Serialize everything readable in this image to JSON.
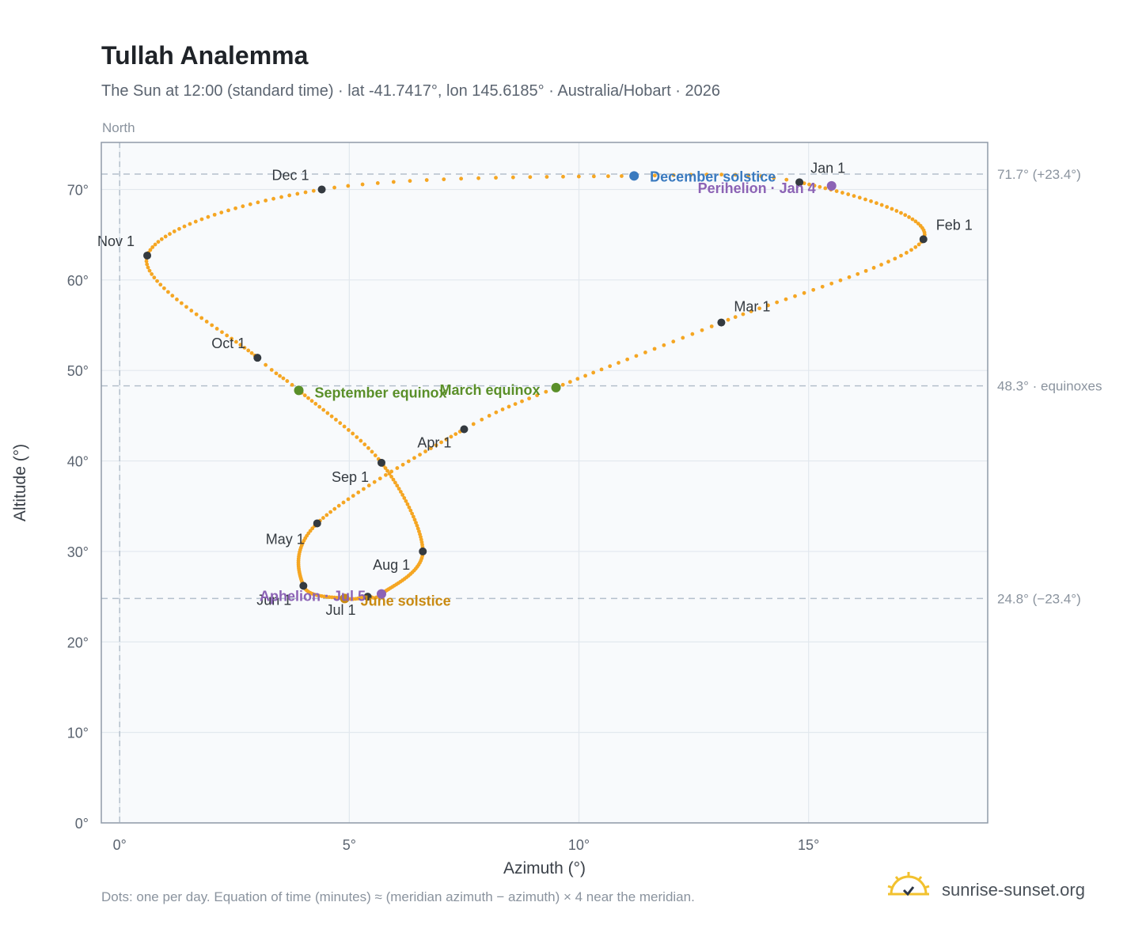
{
  "header": {
    "title": "Tullah Analemma",
    "subtitle": "The Sun at 12:00 (standard time) · lat -41.7417°, lon 145.6185° · Australia/Hobart · 2026"
  },
  "footer": {
    "note": "Dots: one per day. Equation of time (minutes) ≈ (meridian azimuth − azimuth) × 4 near the meridian.",
    "brand": "sunrise-sunset.org",
    "brand_icon": "sun-logo-icon"
  },
  "colors": {
    "curve": "#f5a623",
    "month_marker": "#343a40",
    "equinox": "#5a8f29",
    "december_solstice": "#3a7abf",
    "june_solstice": "#c98a12",
    "perihelion_aphelion": "#8c63b5",
    "plot_bg": "#f8fafc",
    "grid": "#e2e8ee",
    "ref_line": "#b4c0cc"
  },
  "chart_data": {
    "type": "scatter",
    "xlabel": "Azimuth (°)",
    "ylabel": "Altitude (°)",
    "xlim": [
      -0.4,
      18.9
    ],
    "ylim": [
      0,
      75.2
    ],
    "xticks": [
      0,
      5,
      10,
      15
    ],
    "yticks": [
      0,
      10,
      20,
      30,
      40,
      50,
      60,
      70
    ],
    "x_tick_labels": [
      "0°",
      "5°",
      "10°",
      "15°"
    ],
    "y_tick_labels": [
      "0°",
      "10°",
      "20°",
      "30°",
      "40°",
      "50°",
      "60°",
      "70°"
    ],
    "grid": true,
    "direction_label": "North",
    "meridian_azimuth": 0,
    "reference_lines": [
      {
        "altitude": 71.7,
        "label": "71.7° (+23.4°)"
      },
      {
        "altitude": 48.3,
        "label": "48.3° · equinoxes"
      },
      {
        "altitude": 24.8,
        "label": "24.8° (−23.4°)"
      }
    ],
    "analemma_anchors": [
      {
        "day": 1,
        "azimuth": 14.8,
        "altitude": 70.8
      },
      {
        "day": 32,
        "azimuth": 17.5,
        "altitude": 64.5
      },
      {
        "day": 60,
        "azimuth": 13.1,
        "altitude": 55.3
      },
      {
        "day": 79,
        "azimuth": 9.5,
        "altitude": 48.1
      },
      {
        "day": 91,
        "azimuth": 7.5,
        "altitude": 43.5
      },
      {
        "day": 121,
        "azimuth": 4.3,
        "altitude": 33.1
      },
      {
        "day": 152,
        "azimuth": 4.0,
        "altitude": 26.2
      },
      {
        "day": 172,
        "azimuth": 4.9,
        "altitude": 24.8
      },
      {
        "day": 182,
        "azimuth": 5.4,
        "altitude": 25.0
      },
      {
        "day": 186,
        "azimuth": 5.7,
        "altitude": 25.3
      },
      {
        "day": 213,
        "azimuth": 6.6,
        "altitude": 30.0
      },
      {
        "day": 244,
        "azimuth": 5.7,
        "altitude": 39.8
      },
      {
        "day": 266,
        "azimuth": 3.9,
        "altitude": 47.8
      },
      {
        "day": 274,
        "azimuth": 3.0,
        "altitude": 51.4
      },
      {
        "day": 305,
        "azimuth": 0.6,
        "altitude": 62.7
      },
      {
        "day": 335,
        "azimuth": 4.4,
        "altitude": 70.0
      },
      {
        "day": 355,
        "azimuth": 11.2,
        "altitude": 71.5
      },
      {
        "day": 366,
        "azimuth": 14.8,
        "altitude": 70.8
      }
    ],
    "month_markers": [
      {
        "label": "Jan 1",
        "azimuth": 14.8,
        "altitude": 70.8,
        "anchor": "start",
        "dx": 14,
        "dy": -12
      },
      {
        "label": "Feb 1",
        "azimuth": 17.5,
        "altitude": 64.5,
        "anchor": "start",
        "dx": 16,
        "dy": -12
      },
      {
        "label": "Mar 1",
        "azimuth": 13.1,
        "altitude": 55.3,
        "anchor": "start",
        "dx": 16,
        "dy": -14
      },
      {
        "label": "Apr 1",
        "azimuth": 7.5,
        "altitude": 43.5,
        "anchor": "end",
        "dx": -16,
        "dy": 23
      },
      {
        "label": "May 1",
        "azimuth": 4.3,
        "altitude": 33.1,
        "anchor": "end",
        "dx": -16,
        "dy": 26
      },
      {
        "label": "Jun 1",
        "azimuth": 4.0,
        "altitude": 26.2,
        "anchor": "end",
        "dx": -15,
        "dy": 24
      },
      {
        "label": "Jul 1",
        "azimuth": 5.4,
        "altitude": 25.0,
        "anchor": "end",
        "dx": -15,
        "dy": 23
      },
      {
        "label": "Aug 1",
        "azimuth": 6.6,
        "altitude": 30.0,
        "anchor": "end",
        "dx": -16,
        "dy": 23
      },
      {
        "label": "Sep 1",
        "azimuth": 5.7,
        "altitude": 39.8,
        "anchor": "end",
        "dx": -16,
        "dy": 24
      },
      {
        "label": "Oct 1",
        "azimuth": 3.0,
        "altitude": 51.4,
        "anchor": "end",
        "dx": -15,
        "dy": -12
      },
      {
        "label": "Nov 1",
        "azimuth": 0.6,
        "altitude": 62.7,
        "anchor": "end",
        "dx": -16,
        "dy": -12
      },
      {
        "label": "Dec 1",
        "azimuth": 4.4,
        "altitude": 70.0,
        "anchor": "end",
        "dx": -16,
        "dy": -12
      }
    ],
    "events": [
      {
        "label": "March equinox",
        "azimuth": 9.5,
        "altitude": 48.1,
        "color": "#5a8f29",
        "anchor": "end",
        "dx": -20,
        "dy": 9
      },
      {
        "label": "September equinox",
        "azimuth": 3.9,
        "altitude": 47.8,
        "color": "#5a8f29",
        "anchor": "start",
        "dx": 20,
        "dy": 9
      },
      {
        "label": "December solstice",
        "azimuth": 11.2,
        "altitude": 71.5,
        "color": "#3a7abf",
        "anchor": "start",
        "dx": 20,
        "dy": 7
      },
      {
        "label": "June solstice",
        "azimuth": 4.9,
        "altitude": 24.8,
        "color": "#c98a12",
        "anchor": "start",
        "dx": 20,
        "dy": 9
      },
      {
        "label": "Perihelion · Jan 4",
        "azimuth": 15.5,
        "altitude": 70.4,
        "color": "#8c63b5",
        "anchor": "end",
        "dx": -20,
        "dy": 9
      },
      {
        "label": "Aphelion · Jul 5",
        "azimuth": 5.7,
        "altitude": 25.3,
        "color": "#8c63b5",
        "anchor": "end",
        "dx": -20,
        "dy": 9
      }
    ]
  }
}
